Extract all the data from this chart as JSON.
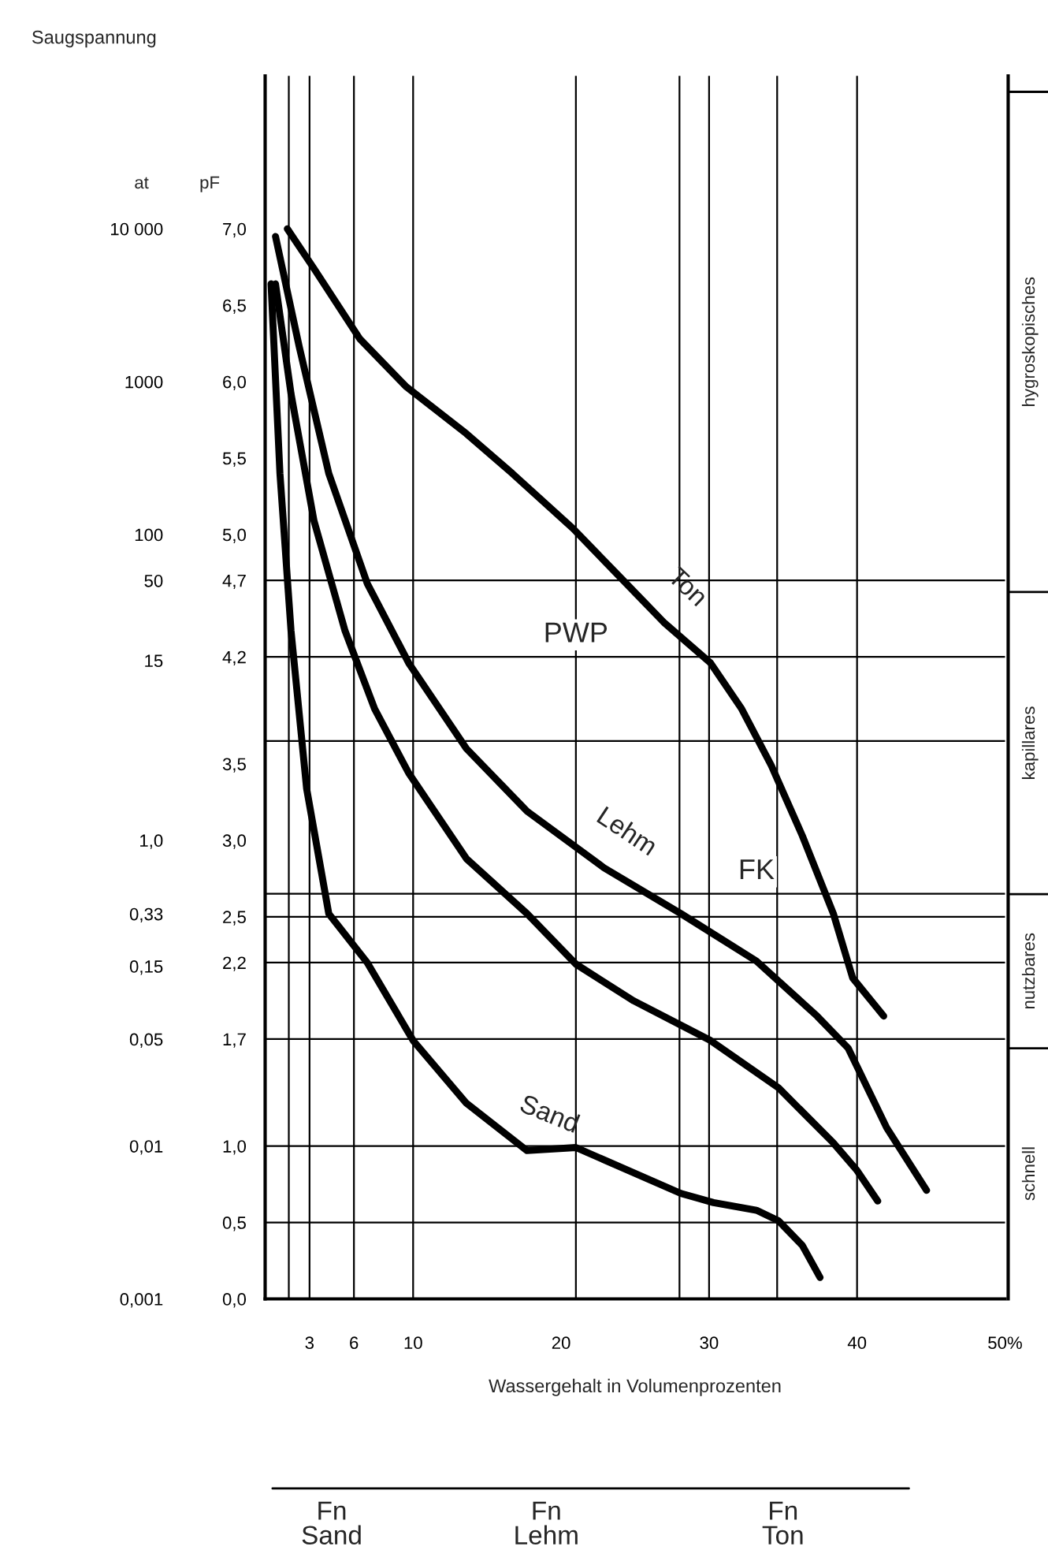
{
  "chart_data": {
    "type": "line",
    "title": "Saugspannung",
    "xlabel": "Wassergehalt in Volumenprozenten",
    "ylabel": "pF",
    "y2label": "at",
    "xlim": [
      0,
      50
    ],
    "xticks": [
      3,
      6,
      10,
      20,
      30,
      40,
      {
        "value": 50,
        "label": "50%"
      }
    ],
    "ylim": [
      0,
      8
    ],
    "yticks": [
      {
        "value": 0.0,
        "label": "0,0"
      },
      {
        "value": 0.5,
        "label": "0,5"
      },
      {
        "value": 1.0,
        "label": "1,0"
      },
      {
        "value": 1.7,
        "label": "1,7"
      },
      {
        "value": 2.2,
        "label": "2,2"
      },
      {
        "value": 2.5,
        "label": "2,5"
      },
      {
        "value": 3.0,
        "label": "3,0"
      },
      {
        "value": 3.5,
        "label": "3,5"
      },
      {
        "value": 4.2,
        "label": "4,2"
      },
      {
        "value": 4.7,
        "label": "4,7"
      },
      {
        "value": 5.0,
        "label": "5,0"
      },
      {
        "value": 5.5,
        "label": "5,5"
      },
      {
        "value": 6.0,
        "label": "6,0"
      },
      {
        "value": 6.5,
        "label": "6,5"
      },
      {
        "value": 7.0,
        "label": "7,0"
      }
    ],
    "log": "y2",
    "y2lim": [
      0.001,
      100000
    ],
    "y2ticks": [
      {
        "value": 0.001,
        "label": "0,001"
      },
      {
        "value": 0.01,
        "label": "0,01"
      },
      {
        "value": 0.05,
        "label": "0,05"
      },
      {
        "value": 0.15,
        "label": "0,15"
      },
      {
        "value": 0.33,
        "label": "0,33"
      },
      {
        "value": 1,
        "label": "1,0"
      },
      {
        "value": 15,
        "label": "15"
      },
      {
        "value": 50,
        "label": "50"
      },
      {
        "value": 100,
        "label": "100"
      },
      {
        "value": 1000,
        "label": "1000"
      },
      {
        "value": 10000,
        "label": "10 000"
      }
    ],
    "series": [
      {
        "name": "Ton",
        "color": "#000000",
        "x": [
          1.5,
          3.3,
          6.4,
          9.5,
          13.6,
          16.7,
          20.8,
          23.9,
          27,
          30.1,
          32.2,
          34.2,
          36.3,
          38.4,
          39.7,
          41.8
        ],
        "values": [
          7.0,
          6.74,
          6.28,
          5.97,
          5.66,
          5.4,
          5.04,
          4.73,
          4.42,
          4.16,
          3.86,
          3.49,
          3.03,
          2.52,
          2.1,
          1.85
        ]
      },
      {
        "name": "Lehm",
        "color": "#000000",
        "x": [
          0.7,
          2.3,
          4.3,
          6.9,
          9.7,
          13.6,
          17.7,
          22.9,
          28.1,
          33.2,
          37.3,
          39.4,
          42,
          44.7
        ],
        "values": [
          6.95,
          6.23,
          5.4,
          4.68,
          4.16,
          3.6,
          3.19,
          2.82,
          2.52,
          2.21,
          1.85,
          1.64,
          1.12,
          0.71
        ]
      },
      {
        "color": "#000000",
        "x": [
          0.7,
          1.75,
          3.3,
          5.4,
          7.4,
          9.7,
          13.6,
          17.7,
          21,
          24.9,
          30.1,
          34.7,
          38.4,
          40,
          41.4
        ],
        "values": [
          6.64,
          5.92,
          5.09,
          4.37,
          3.86,
          3.44,
          2.88,
          2.52,
          2.19,
          1.95,
          1.69,
          1.38,
          1.02,
          0.84,
          0.64
        ]
      },
      {
        "name": "Sand",
        "color": "#000000",
        "x": [
          0.4,
          1,
          1.75,
          2.8,
          4.3,
          6.9,
          10,
          13.6,
          17.7,
          21,
          28.1,
          30.3,
          33.2,
          34.7,
          36.3,
          37.5
        ],
        "values": [
          6.64,
          5.4,
          4.37,
          3.34,
          2.52,
          2.2,
          1.69,
          1.28,
          0.97,
          0.99,
          0.69,
          0.63,
          0.58,
          0.51,
          0.35,
          0.14
        ]
      }
    ],
    "ref_lines": [
      {
        "axis": "y",
        "value": 4.7
      },
      {
        "axis": "y",
        "value": 4.2
      },
      {
        "axis": "y",
        "value": 3.65
      },
      {
        "axis": "y",
        "value": 2.65
      },
      {
        "axis": "y",
        "value": 2.5
      },
      {
        "axis": "y",
        "value": 2.2
      },
      {
        "axis": "y",
        "value": 1.7
      },
      {
        "axis": "y",
        "value": 1.0
      },
      {
        "axis": "y",
        "value": 0.5
      },
      {
        "axis": "x",
        "value": 1.6
      },
      {
        "axis": "x",
        "value": 3
      },
      {
        "axis": "x",
        "value": 6
      },
      {
        "axis": "x",
        "value": 10
      },
      {
        "axis": "x",
        "value": 21
      },
      {
        "axis": "x",
        "value": 28
      },
      {
        "axis": "x",
        "value": 30
      },
      {
        "axis": "x",
        "value": 34.6
      },
      {
        "axis": "x",
        "value": 40
      }
    ],
    "annotations": [
      "schnell",
      "nutzbares",
      "kapillares",
      "hygroskopisches",
      {
        "text": "PWP",
        "x": 21,
        "y": 4.2
      },
      {
        "text": "FK",
        "x": 33.2,
        "y": 2.65
      },
      "Fn\nSand",
      "Fn\nLehm",
      "Fn\nTon"
    ]
  }
}
